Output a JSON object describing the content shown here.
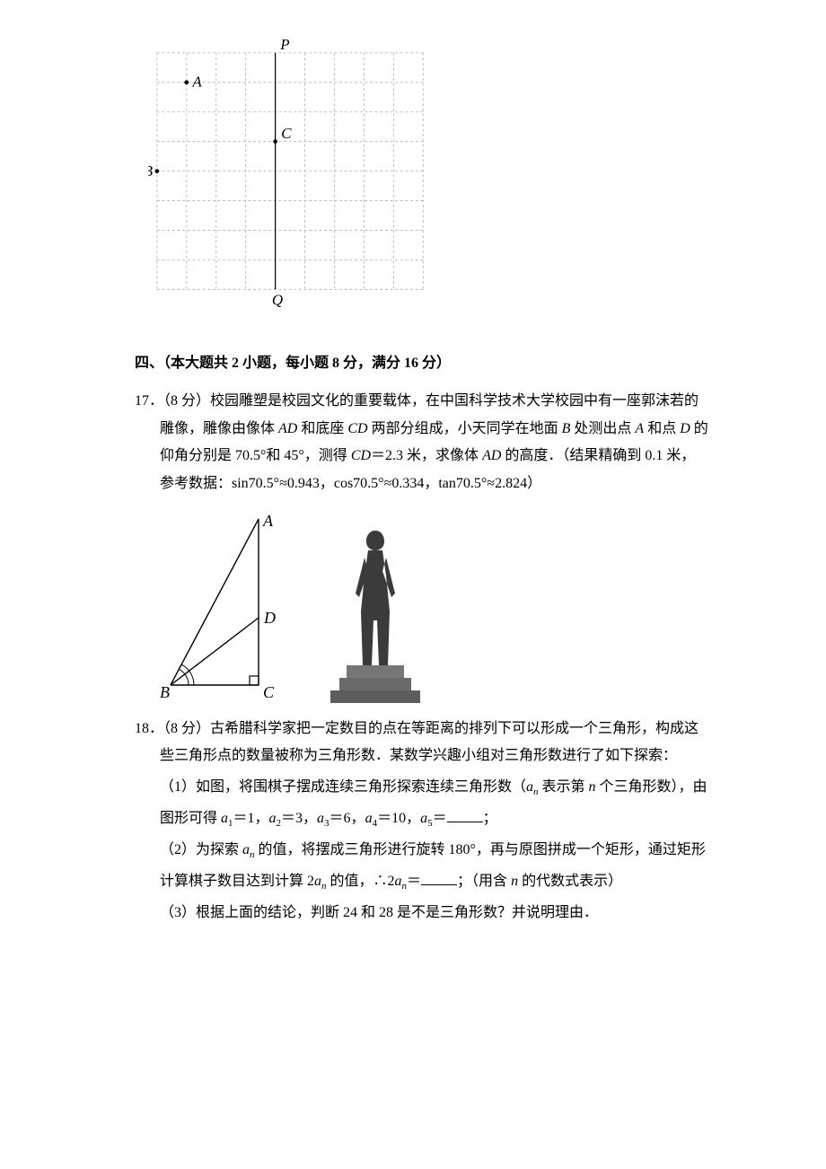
{
  "grid": {
    "cols": 9,
    "rows": 8,
    "cell": 35,
    "stroke": "#b8b8b8",
    "axis_stroke": "#000000",
    "labels": {
      "P": "P",
      "Q": "Q",
      "A": "A",
      "B": "B",
      "C": "C"
    },
    "P_col": 4,
    "Q_col": 4,
    "A": {
      "col": 1,
      "row": 1
    },
    "B": {
      "col": 0,
      "row": 4
    },
    "C": {
      "col": 4,
      "row": 3
    }
  },
  "section4": {
    "title": "四、（本大题共 2 小题，每小题 8 分，满分 16 分）"
  },
  "p17": {
    "num": "17．（8 分）",
    "l1": "校园雕塑是校园文化的重要载体，在中国科学技术大学校园中有一座郭沫若的",
    "l2_a": "雕像，雕像由像体 ",
    "l2_b": " 和底座 ",
    "l2_c": " 两部分组成，小天同学在地面 ",
    "l2_d": " 处测出点 ",
    "l2_e": " 和点 ",
    "l2_f": " 的",
    "l3_a": "仰角分别是 70.5°和 45°，测得 ",
    "l3_b": "＝2.3 米，求像体 ",
    "l3_c": " 的高度．（结果精确到 0.1 米，",
    "l4": "参考数据：sin70.5°≈0.943，cos70.5°≈0.334，tan70.5°≈2.824）",
    "AD": "AD",
    "CD": "CD",
    "B": "B",
    "A": "A",
    "D": "D",
    "tri": {
      "stroke": "#000000",
      "A": "A",
      "B": "B",
      "C": "C",
      "D": "D"
    }
  },
  "p18": {
    "num": "18．（8 分）",
    "l1": "古希腊科学家把一定数目的点在等距离的排列下可以形成一个三角形，构成这",
    "l2": "些三角形点的数量被称为三角形数．某数学兴趣小组对三角形数进行了如下探索：",
    "s1_a": "（1）如图，将围棋子摆成连续三角形探索连续三角形数（",
    "s1_b": " 表示第 ",
    "s1_c": " 个三角形数），由",
    "s1_line2_a": "图形可得 ",
    "s1_line2_b": "＝1，",
    "s1_line2_c": "＝3，",
    "s1_line2_d": "＝6，",
    "s1_line2_e": "＝10，",
    "s1_line2_f": "＝",
    "s1_line2_g": "；",
    "s2_a": "（2）为探索 ",
    "s2_b": " 的值，将摆成三角形进行旋转 180°，再与原图拼成一个矩形，通过矩形",
    "s2_line2_a": "计算棋子数目达到计算 2",
    "s2_line2_b": " 的值，∴2",
    "s2_line2_c": "＝",
    "s2_line2_d": "；（用含 ",
    "s2_line2_e": " 的代数式表示）",
    "s3": "（3）根据上面的结论，判断 24 和 28 是不是三角形数？并说明理由．",
    "a": "a",
    "n": "n",
    "a1": "1",
    "a2": "2",
    "a3": "3",
    "a4": "4",
    "a5": "5"
  }
}
